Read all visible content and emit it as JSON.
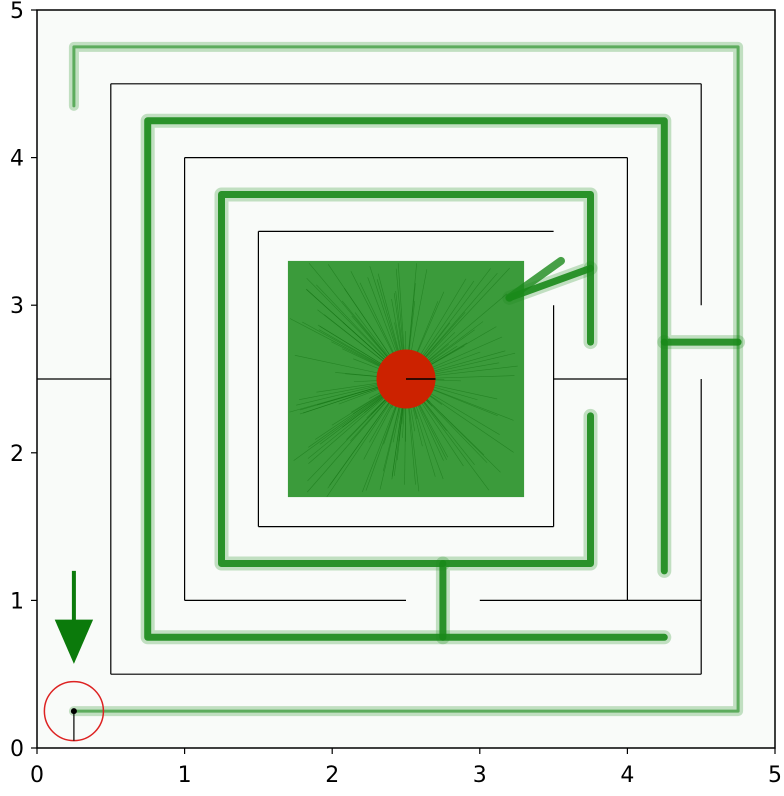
{
  "chart_data": {
    "type": "line",
    "title": "",
    "xlabel": "",
    "ylabel": "",
    "xlim": [
      0,
      5
    ],
    "ylim": [
      0,
      5
    ],
    "x_ticks": [
      "0",
      "1",
      "2",
      "3",
      "4",
      "5"
    ],
    "y_ticks": [
      "0",
      "1",
      "2",
      "3",
      "4",
      "5"
    ],
    "grid": false,
    "colors": {
      "paths": "#1a8a1a",
      "walls": "#000000",
      "goal": "#cc2200",
      "start": "#dd2222",
      "background": "#f9fbf9"
    },
    "walls": [
      [
        [
          0.0,
          2.5
        ],
        [
          0.5,
          2.5
        ]
      ],
      [
        [
          0.5,
          0.5
        ],
        [
          0.5,
          4.5
        ]
      ],
      [
        [
          0.5,
          4.5
        ],
        [
          4.5,
          4.5
        ]
      ],
      [
        [
          4.5,
          4.5
        ],
        [
          4.5,
          3.0
        ]
      ],
      [
        [
          4.5,
          2.5
        ],
        [
          4.5,
          0.5
        ]
      ],
      [
        [
          4.5,
          0.5
        ],
        [
          0.5,
          0.5
        ]
      ],
      [
        [
          1.0,
          1.0
        ],
        [
          1.0,
          4.0
        ]
      ],
      [
        [
          1.0,
          4.0
        ],
        [
          4.0,
          4.0
        ]
      ],
      [
        [
          4.0,
          4.0
        ],
        [
          4.0,
          1.0
        ]
      ],
      [
        [
          4.0,
          1.0
        ],
        [
          4.5,
          1.0
        ]
      ],
      [
        [
          1.0,
          1.0
        ],
        [
          2.5,
          1.0
        ]
      ],
      [
        [
          3.0,
          1.0
        ],
        [
          4.0,
          1.0
        ]
      ],
      [
        [
          1.5,
          1.5
        ],
        [
          1.5,
          3.5
        ]
      ],
      [
        [
          1.5,
          3.5
        ],
        [
          3.5,
          3.5
        ]
      ],
      [
        [
          1.5,
          1.5
        ],
        [
          3.5,
          1.5
        ]
      ],
      [
        [
          3.5,
          1.5
        ],
        [
          3.5,
          3.0
        ]
      ],
      [
        [
          3.5,
          2.5
        ],
        [
          4.0,
          2.5
        ]
      ]
    ],
    "corridor_route": [
      [
        0.25,
        0.25
      ],
      [
        4.75,
        0.25
      ],
      [
        4.75,
        4.75
      ],
      [
        0.25,
        4.75
      ],
      [
        0.25,
        4.35
      ]
    ],
    "corridor_route_2": [
      [
        4.75,
        2.75
      ],
      [
        4.25,
        2.75
      ],
      [
        4.25,
        4.25
      ],
      [
        0.75,
        4.25
      ],
      [
        0.75,
        0.75
      ],
      [
        4.25,
        0.75
      ]
    ],
    "corridor_route_3": [
      [
        4.25,
        2.75
      ],
      [
        4.25,
        1.2
      ]
    ],
    "corridor_route_4": [
      [
        2.75,
        0.75
      ],
      [
        2.75,
        1.25
      ],
      [
        3.75,
        1.25
      ],
      [
        3.75,
        2.25
      ]
    ],
    "corridor_route_5": [
      [
        2.75,
        1.25
      ],
      [
        1.25,
        1.25
      ],
      [
        1.25,
        3.75
      ],
      [
        3.75,
        3.75
      ],
      [
        3.75,
        3.25
      ],
      [
        3.2,
        3.05
      ]
    ],
    "corridor_route_6": [
      [
        3.75,
        3.25
      ],
      [
        3.75,
        2.75
      ]
    ],
    "goal_region": {
      "x": [
        1.7,
        3.3
      ],
      "y": [
        1.7,
        3.3
      ]
    },
    "goal": {
      "x": 2.5,
      "y": 2.5,
      "radius": 0.2
    },
    "start": {
      "x": 0.25,
      "y": 0.25,
      "radius": 0.2
    },
    "arrow": {
      "x": 0.25,
      "y_from": 1.2,
      "y_to": 0.57
    }
  }
}
